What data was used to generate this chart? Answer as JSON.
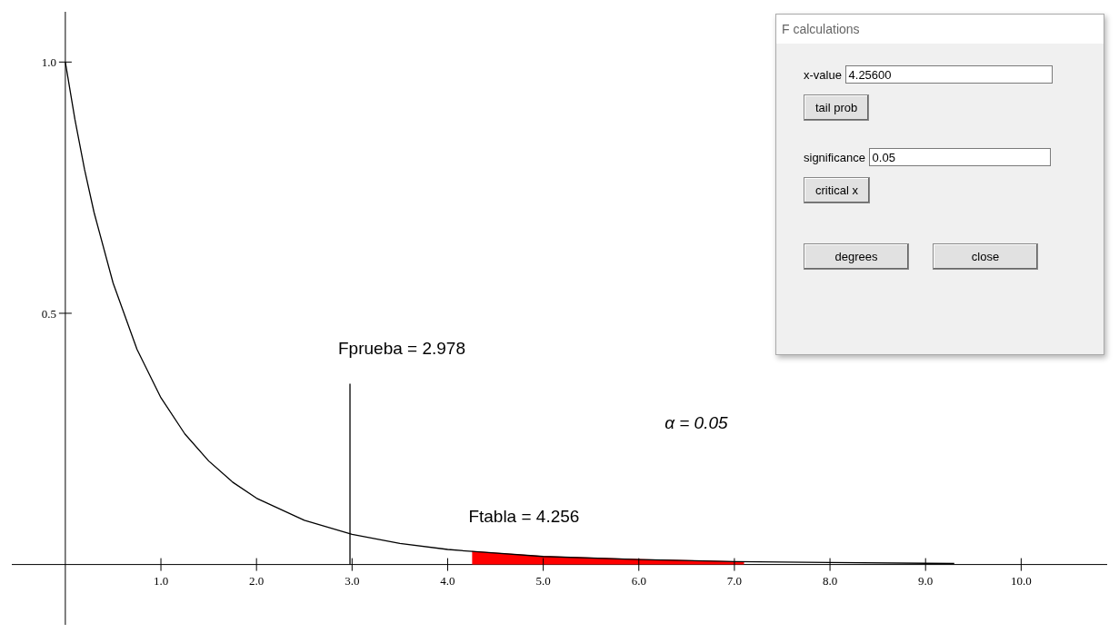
{
  "chart_data": [
    {
      "type": "line",
      "xlim": [
        -0.56,
        10.9
      ],
      "ylim": [
        -0.12,
        1.1
      ],
      "xticks": [
        {
          "value": 1,
          "label": "1.0"
        },
        {
          "value": 2,
          "label": "2.0"
        },
        {
          "value": 3,
          "label": "3.0"
        },
        {
          "value": 4,
          "label": "4.0"
        },
        {
          "value": 5,
          "label": "5.0"
        },
        {
          "value": 6,
          "label": "6.0"
        },
        {
          "value": 7,
          "label": "7.0"
        },
        {
          "value": 8,
          "label": "8.0"
        },
        {
          "value": 9,
          "label": "9.0"
        },
        {
          "value": 10,
          "label": "10.0"
        }
      ],
      "yticks": [
        {
          "value": 0.5,
          "label": "0.5"
        },
        {
          "value": 1,
          "label": "1.0"
        }
      ],
      "series": [
        {
          "type": "area",
          "color": "#ff0000",
          "x": [
            4.256,
            5,
            6,
            7.1
          ],
          "values": [
            0.026,
            0.016,
            0.01,
            0.005
          ]
        },
        {
          "color": "#000000",
          "x": [
            0,
            0.1,
            0.2,
            0.3,
            0.5,
            0.75,
            1,
            1.25,
            1.5,
            1.75,
            2,
            2.5,
            3,
            3.5,
            4,
            4.256,
            5,
            6,
            7,
            8,
            9.3
          ],
          "values": [
            1,
            0.886,
            0.787,
            0.701,
            0.56,
            0.428,
            0.332,
            0.26,
            0.206,
            0.164,
            0.132,
            0.088,
            0.06,
            0.042,
            0.03,
            0.026,
            0.016,
            0.01,
            0.006,
            0.004,
            0.002
          ]
        },
        {
          "color": "#000000",
          "x": [
            2.978,
            2.978
          ],
          "values": [
            0,
            0.36
          ]
        }
      ],
      "annotations": [
        {
          "text": "Fprueba = 2.978",
          "x": 2.978,
          "y": 0.36
        },
        {
          "text": "Ftabla = 4.256",
          "x": 4.256,
          "y": 0.026
        },
        "α = 0.05"
      ]
    },
    {
      "type": "other",
      "title": "F calculations",
      "annotations": [
        "x-value",
        "4.25600",
        "tail prob",
        "significance",
        "0.05",
        "critical x",
        "degrees",
        "close"
      ]
    }
  ]
}
